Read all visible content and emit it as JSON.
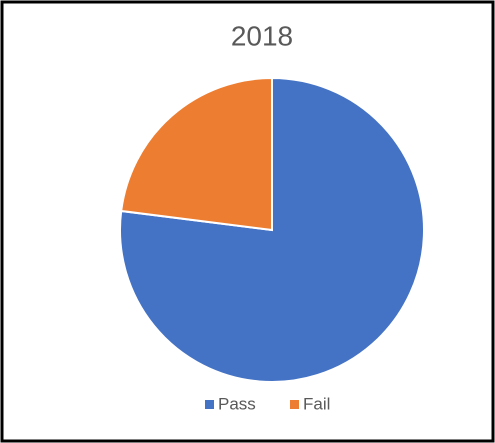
{
  "chart_data": {
    "type": "pie",
    "title": "2018",
    "categories": [
      "Pass",
      "Fail"
    ],
    "values": [
      77,
      23
    ],
    "colors": [
      "#4472c4",
      "#ed7d31"
    ],
    "legend": "bottom"
  }
}
